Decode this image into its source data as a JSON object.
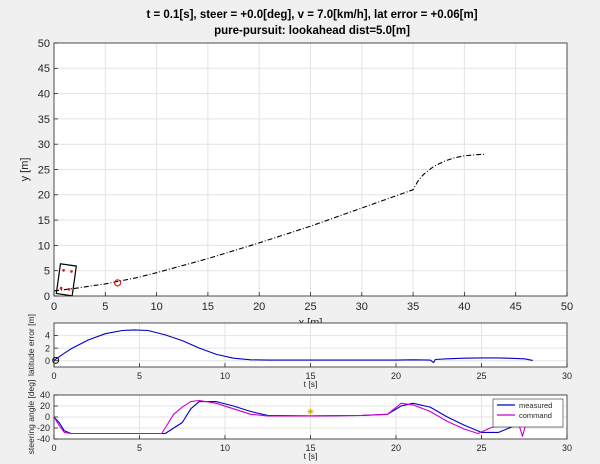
{
  "figure": {
    "title_line1": "t = 0.1[s], steer = +0.0[deg], v = 7.0[km/h], lat error = +0.06[m]",
    "title_line2": "pure-pursuit: lookahead dist=5.0[m]"
  },
  "chart_data": [
    {
      "id": "trajectory",
      "type": "line",
      "xlabel": "x [m]",
      "ylabel": "y [m]",
      "xlim": [
        0,
        50
      ],
      "ylim": [
        0,
        50
      ],
      "xticks": [
        0,
        5,
        10,
        15,
        20,
        25,
        30,
        35,
        40,
        45,
        50
      ],
      "yticks": [
        0,
        5,
        10,
        15,
        20,
        25,
        30,
        35,
        40,
        45,
        50
      ],
      "grid": true,
      "series": [
        {
          "line_style": "dash-dot",
          "color": "#000000",
          "x": [
            0,
            2,
            5,
            8,
            10,
            15,
            20,
            25,
            30,
            35,
            35.5,
            36,
            37,
            38,
            39,
            40,
            41,
            42
          ],
          "y": [
            1.0,
            1.5,
            2.4,
            3.6,
            4.6,
            7.4,
            10.5,
            13.8,
            17.4,
            21.0,
            22.8,
            24.0,
            25.6,
            26.6,
            27.3,
            27.7,
            27.9,
            28.0
          ]
        }
      ],
      "vehicle": {
        "x": 1.2,
        "y": 3.2,
        "color": "#000000"
      },
      "lookahead_point": {
        "x": 6.2,
        "y": 2.6,
        "color": "#d62728"
      }
    },
    {
      "id": "lateral_error",
      "type": "line",
      "xlabel": "t [s]",
      "ylabel": "latitude error [m]",
      "xlim": [
        0,
        30
      ],
      "ylim": [
        -1,
        6
      ],
      "xticks": [
        0,
        5,
        10,
        15,
        20,
        25,
        30
      ],
      "yticks": [
        0,
        2,
        4
      ],
      "grid": true,
      "series": [
        {
          "color": "#0000cc",
          "x": [
            0,
            0.5,
            1,
            2,
            3,
            4,
            4.7,
            5.5,
            6.5,
            7.5,
            8.5,
            9.5,
            10.5,
            11.5,
            12.5,
            20,
            21,
            22,
            22.2,
            22.3,
            23,
            24,
            25,
            26,
            26.5,
            27.5,
            28
          ],
          "y": [
            0.05,
            1.0,
            1.9,
            3.3,
            4.3,
            4.8,
            4.9,
            4.8,
            4.1,
            3.2,
            2.0,
            1.0,
            0.4,
            0.15,
            0.1,
            0.1,
            0.15,
            0.1,
            -0.3,
            0.2,
            0.3,
            0.4,
            0.45,
            0.45,
            0.4,
            0.3,
            0.05
          ]
        }
      ],
      "marker": {
        "x": 0.1,
        "y": 0.06
      }
    },
    {
      "id": "steering",
      "type": "line",
      "xlabel": "t [s]",
      "ylabel": "steering angle [deg]",
      "xlim": [
        0,
        30
      ],
      "ylim": [
        -40,
        40
      ],
      "xticks": [
        0,
        5,
        10,
        15,
        20,
        25,
        30
      ],
      "yticks": [
        -40,
        -20,
        0,
        20,
        40
      ],
      "grid": true,
      "legend": "top-right",
      "series": [
        {
          "name": "measured",
          "color": "#0000cc",
          "x": [
            0,
            0.3,
            0.6,
            1,
            6.5,
            7.5,
            8,
            8.5,
            9.5,
            10.5,
            11.5,
            12.5,
            15,
            18,
            19.5,
            20.3,
            21,
            22,
            23,
            24,
            25,
            26,
            27,
            28
          ],
          "y": [
            0,
            -10,
            -25,
            -30,
            -30,
            -10,
            15,
            28,
            28,
            20,
            10,
            3,
            2,
            3,
            5,
            20,
            25,
            18,
            0,
            -15,
            -28,
            -28,
            -15,
            -13
          ]
        },
        {
          "name": "command",
          "color": "#cc00cc",
          "x": [
            0,
            0.3,
            0.6,
            1,
            6.3,
            7,
            7.5,
            8,
            8.5,
            9.5,
            10.5,
            11.5,
            12.5,
            15,
            18,
            19.5,
            20.3,
            21,
            22,
            23,
            24,
            24.8,
            25.5,
            26,
            27.2,
            27.4,
            27.6,
            28
          ],
          "y": [
            0,
            -15,
            -28,
            -30,
            -30,
            5,
            18,
            28,
            30,
            25,
            15,
            5,
            2,
            2,
            3,
            5,
            25,
            22,
            10,
            -8,
            -22,
            -30,
            -20,
            -15,
            -15,
            -35,
            -12,
            -12
          ]
        }
      ],
      "marker": {
        "x": 15,
        "y": 10,
        "color": "#e8b000"
      }
    }
  ]
}
